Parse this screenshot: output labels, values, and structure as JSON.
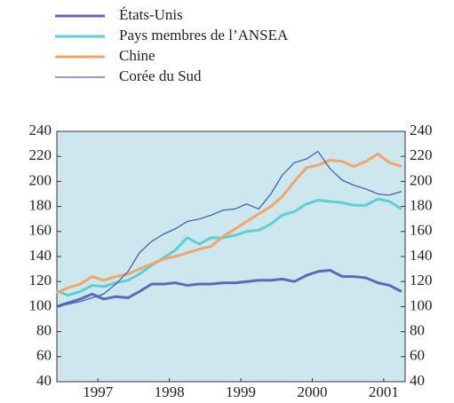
{
  "chart_data": {
    "type": "line",
    "x": [
      1996.92,
      1997.08,
      1997.25,
      1997.42,
      1997.58,
      1997.75,
      1997.92,
      1998.08,
      1998.25,
      1998.42,
      1998.58,
      1998.75,
      1998.92,
      1999.08,
      1999.25,
      1999.42,
      1999.58,
      1999.75,
      1999.92,
      2000.08,
      2000.25,
      2000.42,
      2000.58,
      2000.75,
      2000.92,
      2001.08,
      2001.25,
      2001.42,
      2001.58,
      2001.75
    ],
    "series": [
      {
        "name": "États-Unis",
        "color": "#5b6bb8",
        "width": 3,
        "values": [
          100,
          103,
          106,
          110,
          106,
          108,
          107,
          112,
          118,
          118,
          119,
          117,
          118,
          118,
          119,
          119,
          120,
          121,
          121,
          122,
          120,
          125,
          128,
          129,
          124,
          124,
          123,
          119,
          117,
          112
        ]
      },
      {
        "name": "Pays membres de l’ANSEA",
        "color": "#5ccfd6",
        "width": 3,
        "values": [
          113,
          109,
          112,
          117,
          116,
          119,
          121,
          126,
          133,
          139,
          145,
          155,
          150,
          155,
          155,
          157,
          160,
          161,
          166,
          173,
          176,
          182,
          185,
          184,
          183,
          181,
          181,
          186,
          184,
          178
        ]
      },
      {
        "name": "Chine",
        "color": "#f4a46a",
        "width": 3,
        "values": [
          111,
          115,
          118,
          124,
          121,
          124,
          126,
          130,
          134,
          138,
          140,
          143,
          146,
          148,
          156,
          162,
          168,
          174,
          180,
          188,
          200,
          211,
          213,
          217,
          216,
          212,
          216,
          222,
          215,
          212
        ]
      },
      {
        "name": "Corée du Sud",
        "color": "#4b5fb0",
        "width": 1.3,
        "values": [
          100,
          102,
          104,
          107,
          110,
          118,
          128,
          143,
          152,
          158,
          162,
          168,
          170,
          173,
          177,
          178,
          182,
          178,
          190,
          205,
          215,
          218,
          224,
          210,
          201,
          197,
          194,
          190,
          189,
          192
        ]
      }
    ],
    "xlim": [
      1996.925,
      2001.8
    ],
    "xticks": [
      {
        "value": 1997.5,
        "label": "1997"
      },
      {
        "value": 1998.5,
        "label": "1998"
      },
      {
        "value": 1999.5,
        "label": "1999"
      },
      {
        "value": 2000.5,
        "label": "2000"
      },
      {
        "value": 2001.5,
        "label": "2001"
      }
    ],
    "ylim": [
      40,
      240
    ],
    "yticks": [
      40,
      60,
      80,
      100,
      120,
      140,
      160,
      180,
      200,
      220,
      240
    ],
    "y2lim": [
      40,
      240
    ],
    "y2ticks": [
      40,
      60,
      80,
      100,
      120,
      140,
      160,
      180,
      200,
      220,
      240
    ],
    "background": "#cce8ee",
    "legend": "top-left"
  }
}
